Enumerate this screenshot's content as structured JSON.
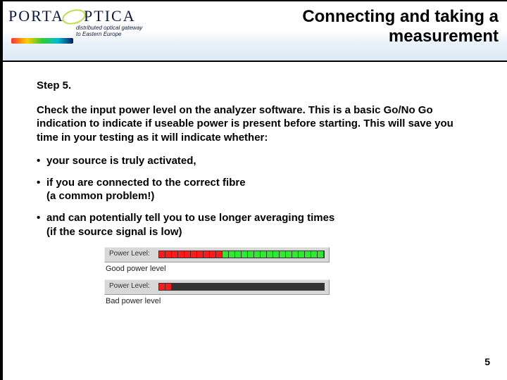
{
  "logo": {
    "word1": "PORTA",
    "word2": "PTICA",
    "tagline_line1": "distributed optical gateway",
    "tagline_line2": "to Eastern Europe"
  },
  "title": {
    "line1": "Connecting and taking a",
    "line2": "measurement"
  },
  "body": {
    "step_label": "Step 5.",
    "paragraph": "Check the input power level on the analyzer software. This is a basic Go/No Go indication to indicate if useable power is present before starting. This will save you time in your testing as it will indicate whether:",
    "bullets": [
      {
        "text": "your source is truly activated,"
      },
      {
        "text": "if you are connected to the correct fibre",
        "sub": "(a common problem!)"
      },
      {
        "text": "and can potentially tell you to use longer averaging times",
        "sub": "(if the source signal is low)"
      }
    ]
  },
  "meters": {
    "label": "Power Level:",
    "good": {
      "caption": "Good power level",
      "segments": [
        "red",
        "red",
        "red",
        "red",
        "red",
        "red",
        "red",
        "red",
        "red",
        "red",
        "grn",
        "grn",
        "grn",
        "grn",
        "grn",
        "grn",
        "grn",
        "grn",
        "grn",
        "grn",
        "grn",
        "grn",
        "grn",
        "grn",
        "grn",
        "grn"
      ],
      "colors": {
        "red": "#ff1a1a",
        "grn": "#2eea2e",
        "off": "#333333"
      },
      "box_bg": "#d8d8d8"
    },
    "bad": {
      "caption": "Bad power level",
      "segments": [
        "red",
        "red",
        "off",
        "off",
        "off",
        "off",
        "off",
        "off",
        "off",
        "off",
        "off",
        "off",
        "off",
        "off",
        "off",
        "off",
        "off",
        "off",
        "off",
        "off",
        "off",
        "off",
        "off",
        "off",
        "off",
        "off"
      ],
      "colors": {
        "red": "#ff1a1a",
        "grn": "#2eea2e",
        "off": "#333333"
      },
      "box_bg": "#d8d8d8"
    }
  },
  "page_number": "5"
}
